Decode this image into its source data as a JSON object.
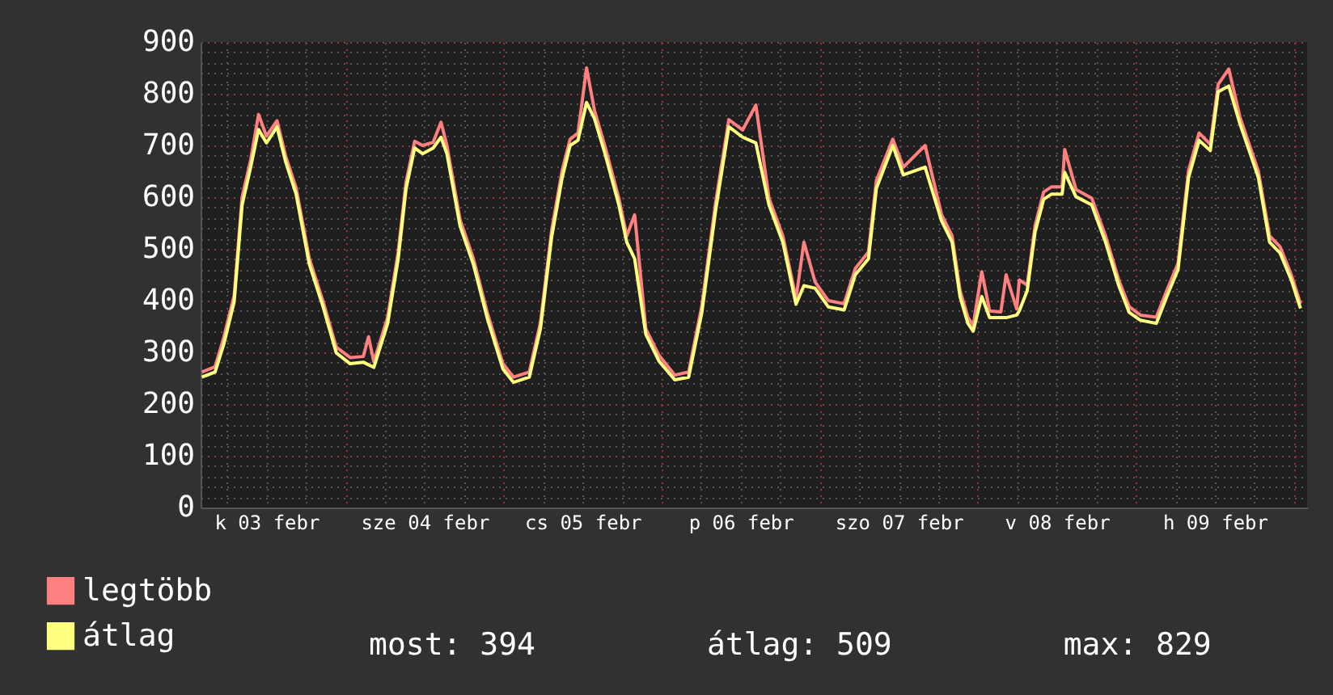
{
  "chart_data": {
    "type": "line",
    "legend": "bottom",
    "marker": "none",
    "grid": true,
    "x": [
      "--02-03T02:12",
      "--02-03T04:12",
      "--02-03T05:30",
      "--02-03T07:06",
      "--02-03T08:18",
      "--02-03T09:36",
      "--02-03T10:48",
      "--02-03T12:00",
      "--02-03T13:36",
      "--02-03T14:54",
      "--02-03T16:30",
      "--02-03T18:30",
      "--02-03T20:36",
      "--02-03T22:36",
      "--02-04T00:42",
      "--02-04T02:42",
      "--02-04T03:30",
      "--02-04T04:18",
      "--02-04T06:24",
      "--02-04T08:00",
      "--02-04T09:12",
      "--02-04T10:30",
      "--02-04T11:42",
      "--02-04T13:18",
      "--02-04T14:30",
      "--02-04T15:24",
      "--02-04T17:24",
      "--02-04T19:24",
      "--02-04T21:30",
      "--02-04T23:54",
      "--02-05T01:30",
      "--02-05T03:54",
      "--02-05T05:36",
      "--02-05T07:18",
      "--02-05T08:54",
      "--02-05T10:06",
      "--02-05T11:18",
      "--02-05T12:36",
      "--02-05T13:48",
      "--02-05T15:24",
      "--02-05T17:30",
      "--02-05T18:42",
      "--02-05T19:54",
      "--02-05T21:36",
      "--02-05T23:36",
      "--02-06T02:00",
      "--02-06T04:06",
      "--02-06T06:06",
      "--02-06T08:12",
      "--02-06T10:12",
      "--02-06T12:18",
      "--02-06T14:18",
      "--02-06T16:18",
      "--02-06T18:24",
      "--02-06T20:24",
      "--02-06T21:36",
      "--02-06T23:18",
      "--02-07T01:18",
      "--02-07T03:42",
      "--02-07T05:24",
      "--02-07T07:24",
      "--02-07T08:36",
      "--02-07T11:06",
      "--02-07T12:42",
      "--02-07T16:00",
      "--02-07T18:30",
      "--02-07T20:06",
      "--02-07T21:18",
      "--02-07T22:30",
      "--02-07T23:18",
      "--02-08T00:36",
      "--02-08T01:48",
      "--02-08T03:30",
      "--02-08T04:18",
      "--02-08T05:54",
      "--02-08T06:18",
      "--02-08T07:30",
      "--02-08T08:42",
      "--02-08T10:00",
      "--02-08T11:12",
      "--02-08T12:48",
      "--02-08T13:12",
      "--02-08T14:54",
      "--02-08T17:18",
      "--02-08T19:24",
      "--02-08T21:24",
      "--02-08T23:00",
      "--02-09T00:42",
      "--02-09T03:06",
      "--02-09T04:42",
      "--02-09T06:24",
      "--02-09T08:00",
      "--02-09T09:36",
      "--02-09T11:18",
      "--02-09T12:30",
      "--02-09T14:06",
      "--02-09T15:48",
      "--02-09T18:36",
      "--02-09T20:18",
      "--02-09T21:54",
      "--02-09T23:36",
      "--02-10T01:00"
    ],
    "series": [
      {
        "name": "legtöbb",
        "color": "#ff8080",
        "values": [
          262,
          272,
          328,
          410,
          600,
          672,
          760,
          718,
          748,
          680,
          618,
          482,
          398,
          310,
          290,
          292,
          330,
          282,
          368,
          494,
          630,
          708,
          700,
          706,
          745,
          700,
          556,
          482,
          378,
          278,
          252,
          262,
          358,
          536,
          652,
          712,
          724,
          850,
          768,
          698,
          598,
          525,
          566,
          345,
          294,
          256,
          262,
          390,
          590,
          750,
          730,
          778,
          598,
          525,
          404,
          513,
          436,
          400,
          394,
          462,
          494,
          632,
          712,
          658,
          700,
          566,
          525,
          420,
          368,
          352,
          456,
          380,
          378,
          450,
          384,
          440,
          430,
          545,
          610,
          620,
          620,
          692,
          615,
          598,
          525,
          440,
          388,
          372,
          368,
          420,
          472,
          652,
          724,
          702,
          818,
          848,
          755,
          650,
          525,
          504,
          450,
          394
        ]
      },
      {
        "name": "átlag",
        "color": "#ffff80",
        "values": [
          252,
          262,
          315,
          398,
          585,
          658,
          731,
          705,
          736,
          669,
          606,
          471,
          388,
          299,
          278,
          281,
          276,
          271,
          356,
          481,
          617,
          695,
          684,
          695,
          716,
          684,
          544,
          471,
          367,
          268,
          242,
          252,
          346,
          523,
          638,
          700,
          710,
          783,
          752,
          684,
          585,
          513,
          481,
          335,
          283,
          247,
          252,
          377,
          575,
          736,
          716,
          705,
          585,
          513,
          393,
          429,
          424,
          388,
          382,
          450,
          481,
          617,
          700,
          643,
          658,
          554,
          513,
          408,
          356,
          341,
          408,
          367,
          367,
          367,
          372,
          380,
          419,
          533,
          596,
          606,
          606,
          648,
          601,
          585,
          513,
          429,
          377,
          362,
          356,
          408,
          460,
          638,
          710,
          690,
          804,
          815,
          742,
          638,
          513,
          492,
          440,
          385
        ]
      }
    ],
    "xlim": [
      "--02-03T02:00",
      "--02-10T02:00"
    ],
    "xticks": [
      {
        "value": "--02-03T06:00",
        "label": null
      },
      {
        "value": "--02-03T12:00",
        "label": "k 03 febr"
      },
      {
        "value": "--02-03T18:00",
        "label": null
      },
      {
        "value": "--02-04T00:00",
        "label": null
      },
      {
        "value": "--02-04T06:00",
        "label": null
      },
      {
        "value": "--02-04T12:00",
        "label": "sze 04 febr"
      },
      {
        "value": "--02-04T18:00",
        "label": null
      },
      {
        "value": "--02-05T00:00",
        "label": null
      },
      {
        "value": "--02-05T06:00",
        "label": null
      },
      {
        "value": "--02-05T12:00",
        "label": "cs 05 febr"
      },
      {
        "value": "--02-05T18:00",
        "label": null
      },
      {
        "value": "--02-06T00:00",
        "label": null
      },
      {
        "value": "--02-06T06:00",
        "label": null
      },
      {
        "value": "--02-06T12:00",
        "label": "p 06 febr"
      },
      {
        "value": "--02-06T18:00",
        "label": null
      },
      {
        "value": "--02-07T00:00",
        "label": null
      },
      {
        "value": "--02-07T06:00",
        "label": null
      },
      {
        "value": "--02-07T12:00",
        "label": "szo 07 febr"
      },
      {
        "value": "--02-07T18:00",
        "label": null
      },
      {
        "value": "--02-08T00:00",
        "label": null
      },
      {
        "value": "--02-08T06:00",
        "label": null
      },
      {
        "value": "--02-08T12:00",
        "label": "v 08 febr"
      },
      {
        "value": "--02-08T18:00",
        "label": null
      },
      {
        "value": "--02-09T00:00",
        "label": null
      },
      {
        "value": "--02-09T06:00",
        "label": null
      },
      {
        "value": "--02-09T12:00",
        "label": "h 09 febr"
      },
      {
        "value": "--02-09T18:00",
        "label": null
      },
      {
        "value": "--02-10T00:00",
        "label": null
      }
    ],
    "ylim": [
      0,
      900
    ],
    "yticks": [
      0,
      {
        "value": 20,
        "label": null
      },
      {
        "value": 40,
        "label": null
      },
      {
        "value": 60,
        "label": null
      },
      {
        "value": 80,
        "label": null
      },
      100,
      {
        "value": 120,
        "label": null
      },
      {
        "value": 140,
        "label": null
      },
      {
        "value": 160,
        "label": null
      },
      {
        "value": 180,
        "label": null
      },
      200,
      {
        "value": 220,
        "label": null
      },
      {
        "value": 240,
        "label": null
      },
      {
        "value": 260,
        "label": null
      },
      {
        "value": 280,
        "label": null
      },
      300,
      {
        "value": 320,
        "label": null
      },
      {
        "value": 340,
        "label": null
      },
      {
        "value": 360,
        "label": null
      },
      {
        "value": 380,
        "label": null
      },
      400,
      {
        "value": 420,
        "label": null
      },
      {
        "value": 440,
        "label": null
      },
      {
        "value": 460,
        "label": null
      },
      {
        "value": 480,
        "label": null
      },
      500,
      {
        "value": 520,
        "label": null
      },
      {
        "value": 540,
        "label": null
      },
      {
        "value": 560,
        "label": null
      },
      {
        "value": 580,
        "label": null
      },
      600,
      {
        "value": 620,
        "label": null
      },
      {
        "value": 640,
        "label": null
      },
      {
        "value": 660,
        "label": null
      },
      {
        "value": 680,
        "label": null
      },
      700,
      {
        "value": 720,
        "label": null
      },
      {
        "value": 740,
        "label": null
      },
      {
        "value": 760,
        "label": null
      },
      {
        "value": 780,
        "label": null
      },
      800,
      {
        "value": 820,
        "label": null
      },
      {
        "value": 840,
        "label": null
      },
      {
        "value": 860,
        "label": null
      },
      {
        "value": 880,
        "label": null
      },
      900
    ],
    "annotations": [
      "most: 394",
      "átlag: 509",
      "max: 829"
    ]
  }
}
